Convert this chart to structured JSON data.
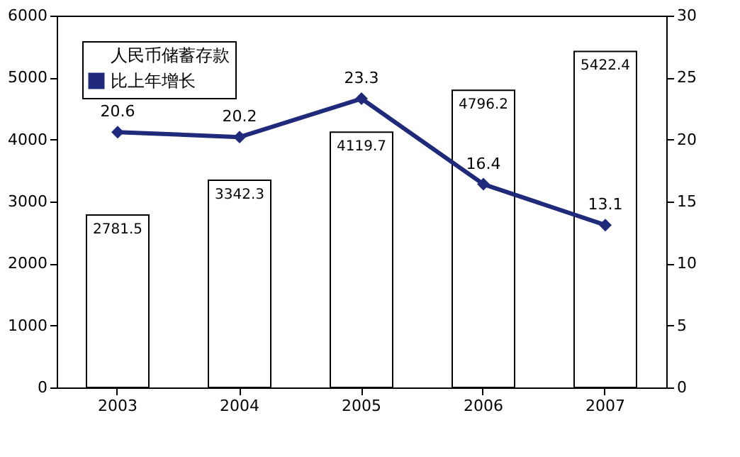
{
  "chart_data": {
    "type": "bar",
    "categories": [
      "2003",
      "2004",
      "2005",
      "2006",
      "2007"
    ],
    "series": [
      {
        "name": "人民币储蓄存款",
        "color": "#ffffff",
        "values": [
          2781.5,
          3342.3,
          4119.7,
          4796.2,
          5422.4
        ]
      },
      {
        "name": "比上年增长",
        "type": "line",
        "axis": "y2",
        "color": "#1f2a7a",
        "values": [
          20.6,
          20.2,
          23.3,
          16.4,
          13.1
        ]
      }
    ],
    "ylim": [
      0,
      6000
    ],
    "yticks": [
      0,
      1000,
      2000,
      3000,
      4000,
      5000,
      6000
    ],
    "y2lim": [
      0,
      30
    ],
    "y2ticks": [
      0,
      5,
      10,
      15,
      20,
      25,
      30
    ],
    "data_labels": true,
    "grid": false,
    "legend": "top left",
    "marker": "diamond",
    "line_style": "solid"
  }
}
